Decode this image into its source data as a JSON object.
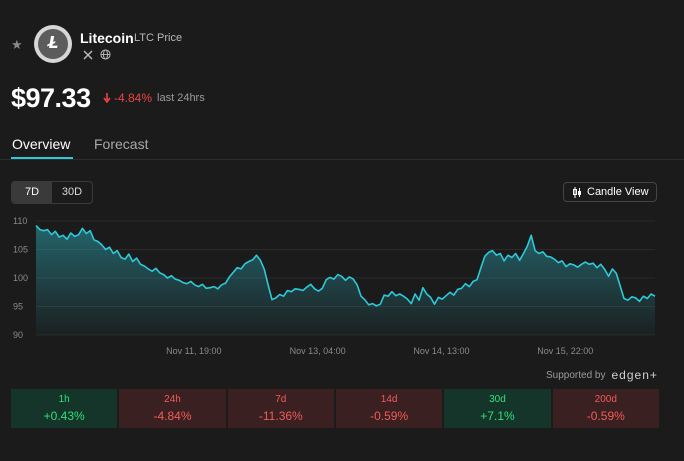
{
  "coin": {
    "name": "Litecoin",
    "subtitle": "LTC Price",
    "price": "$97.33",
    "change": "-4.84%",
    "change_label": "last 24hrs"
  },
  "tabs": [
    {
      "label": "Overview",
      "active": true
    },
    {
      "label": "Forecast",
      "active": false
    }
  ],
  "ranges": [
    {
      "label": "7D",
      "active": true
    },
    {
      "label": "30D",
      "active": false
    }
  ],
  "candle_button": "Candle View",
  "supported": {
    "text": "Supported by",
    "brand": "edgen+"
  },
  "stats": [
    {
      "period": "1h",
      "value": "+0.43%",
      "trend": "up"
    },
    {
      "period": "24h",
      "value": "-4.84%",
      "trend": "down"
    },
    {
      "period": "7d",
      "value": "-11.36%",
      "trend": "down"
    },
    {
      "period": "14d",
      "value": "-0.59%",
      "trend": "down"
    },
    {
      "period": "30d",
      "value": "+7.1%",
      "trend": "up"
    },
    {
      "period": "200d",
      "value": "-0.59%",
      "trend": "down"
    }
  ],
  "colors": {
    "accent": "#2ec9d9",
    "up": "#2fe07a",
    "down": "#f35b5b"
  },
  "chart_data": {
    "type": "area",
    "title": "",
    "xlabel": "",
    "ylabel": "",
    "ylim": [
      90,
      110
    ],
    "yticks": [
      "110",
      "105",
      "100",
      "95",
      "90"
    ],
    "xticks": [
      {
        "label": "Nov 11, 19:00",
        "t": 0.15
      },
      {
        "label": "Nov 13, 04:00",
        "t": 0.35
      },
      {
        "label": "Nov 14, 13:00",
        "t": 0.55
      },
      {
        "label": "Nov 15, 22:00",
        "t": 0.75
      }
    ],
    "values": [
      109.2,
      108.5,
      108.3,
      108.5,
      107.6,
      108.2,
      107.2,
      107.5,
      106.8,
      107.9,
      107.3,
      107.6,
      108.7,
      107.8,
      108.3,
      106.7,
      106.4,
      105.8,
      105.0,
      105.4,
      104.3,
      104.8,
      103.6,
      103.3,
      104.2,
      102.9,
      103.5,
      102.4,
      102.1,
      101.6,
      101.2,
      101.7,
      100.9,
      100.6,
      100.0,
      100.4,
      99.8,
      99.6,
      99.2,
      99.0,
      99.4,
      98.8,
      98.5,
      98.9,
      98.2,
      98.3,
      98.5,
      98.1,
      98.8,
      99.1,
      100.2,
      101.0,
      101.8,
      101.6,
      102.5,
      102.9,
      103.2,
      104.0,
      103.1,
      101.5,
      98.8,
      96.2,
      96.5,
      97.1,
      96.8,
      97.8,
      97.6,
      98.1,
      98.0,
      97.8,
      98.4,
      98.9,
      98.1,
      97.7,
      98.2,
      99.7,
      100.1,
      99.8,
      100.6,
      100.3,
      99.6,
      100.2,
      99.8,
      98.8,
      96.8,
      96.2,
      95.3,
      95.5,
      95.1,
      95.4,
      97.0,
      96.8,
      97.6,
      96.9,
      97.2,
      96.8,
      96.3,
      95.5,
      97.2,
      96.1,
      98.3,
      97.2,
      96.6,
      95.4,
      96.6,
      96.3,
      96.9,
      97.5,
      97.0,
      98.0,
      98.2,
      99.0,
      98.5,
      99.4,
      99.7,
      101.8,
      103.8,
      104.5,
      104.8,
      104.0,
      104.3,
      103.0,
      104.0,
      103.6,
      104.3,
      103.1,
      104.3,
      105.6,
      107.5,
      104.8,
      104.3,
      104.6,
      103.8,
      103.7,
      103.3,
      102.7,
      103.0,
      102.0,
      102.5,
      102.3,
      101.9,
      102.4,
      102.8,
      102.4,
      102.6,
      101.8,
      102.4,
      101.5,
      100.3,
      101.6,
      100.8,
      98.6,
      96.4,
      96.1,
      96.7,
      96.5,
      95.9,
      96.8,
      96.4,
      97.2,
      96.8
    ]
  }
}
